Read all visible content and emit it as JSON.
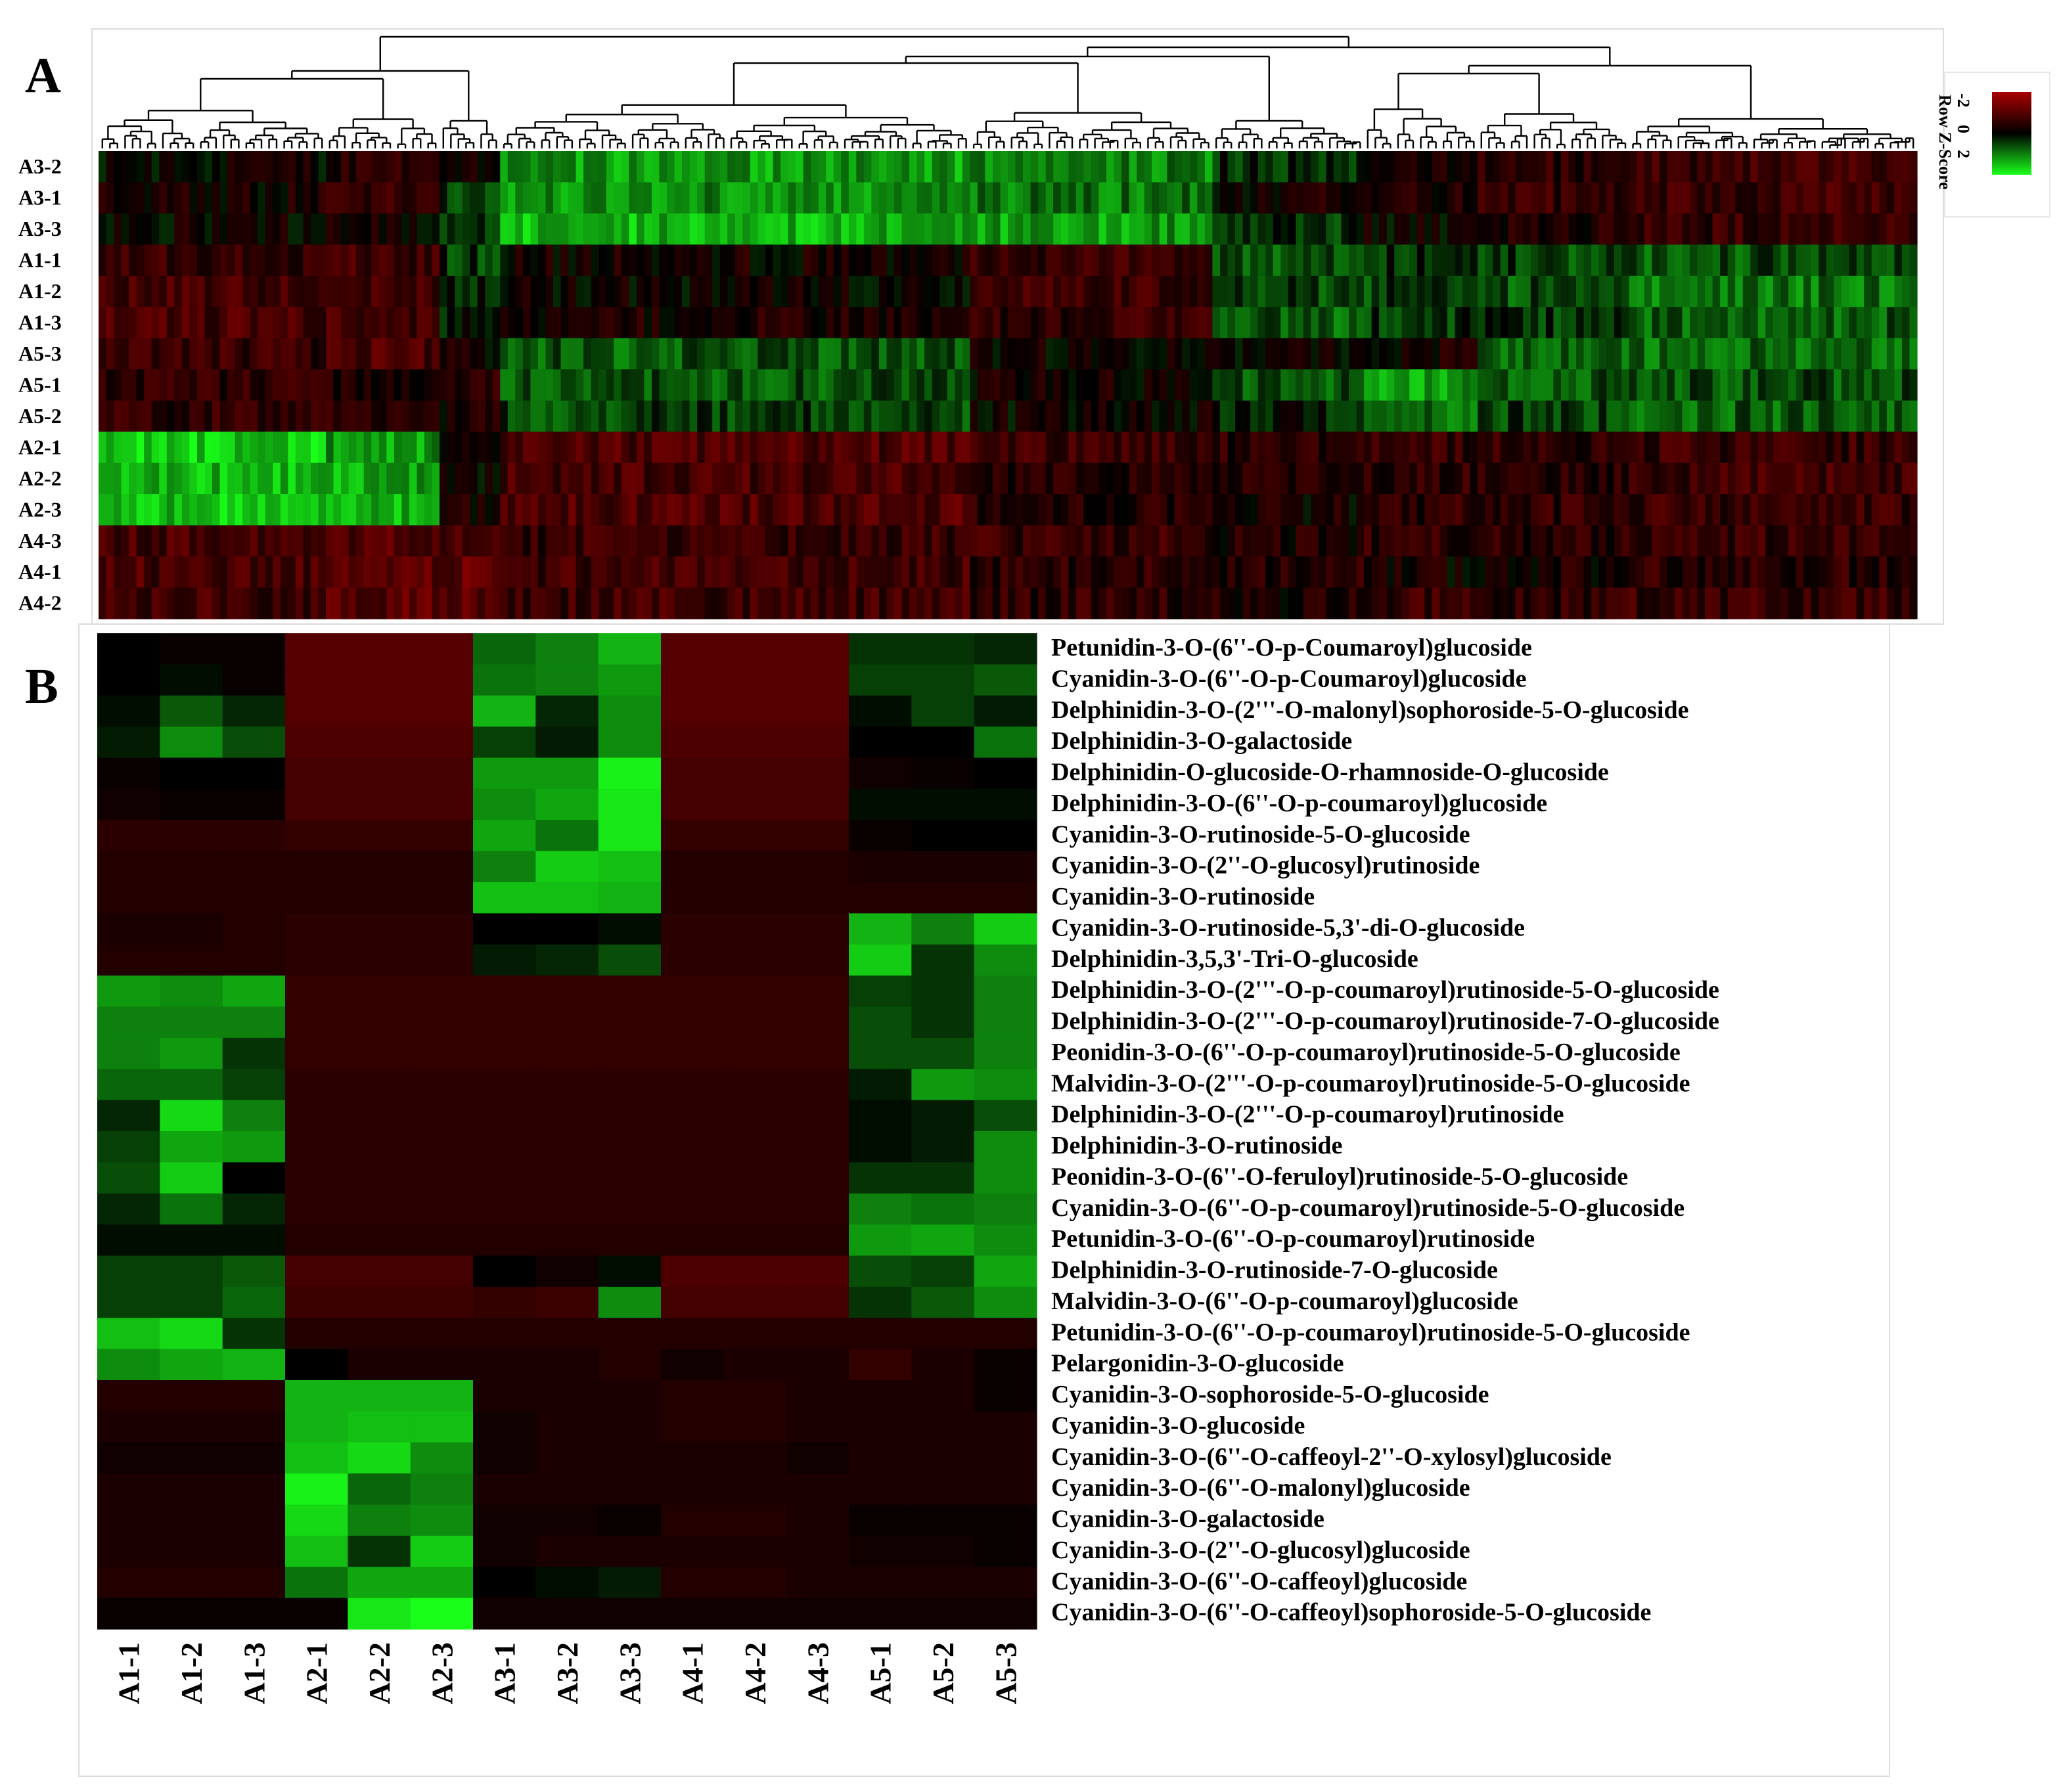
{
  "panel_labels": {
    "a": "A",
    "b": "B"
  },
  "colors": {
    "low": "#19ff19",
    "mid": "#000000",
    "high": "#aa0000",
    "dendrogram": "#000000",
    "frame": "#dcdcdc"
  },
  "color_key": {
    "title": "Row Z-Score",
    "ticks": [
      "-2",
      "0",
      "2"
    ]
  },
  "chart_data": [
    {
      "type": "heatmap",
      "panel": "A",
      "color_scale": {
        "label": "Row Z-Score",
        "min": -2,
        "max": 2,
        "low_color": "#19ff19",
        "mid_color": "#000000",
        "high_color": "#aa0000"
      },
      "rows": [
        "A3-2",
        "A3-1",
        "A3-3",
        "A1-1",
        "A1-2",
        "A1-3",
        "A5-3",
        "A5-1",
        "A5-2",
        "A2-1",
        "A2-2",
        "A2-3",
        "A4-3",
        "A4-1",
        "A4-2"
      ],
      "column_count": 240,
      "column_blocks": [
        {
          "columns": 30,
          "z": [
            0.1,
            0.2,
            0.1,
            0.6,
            0.8,
            0.8,
            0.6,
            0.5,
            0.5,
            -1.6,
            -1.4,
            -1.5,
            0.8,
            0.8,
            0.7
          ]
        },
        {
          "columns": 15,
          "z": [
            0.4,
            0.5,
            0.2,
            0.7,
            0.7,
            0.8,
            0.8,
            0.4,
            0.6,
            -1.2,
            -1.3,
            -1.4,
            0.9,
            1.0,
            1.0
          ]
        },
        {
          "columns": 8,
          "z": [
            0.3,
            -0.4,
            -0.5,
            -0.4,
            -0.3,
            -0.2,
            0.2,
            0.4,
            0.3,
            -0.1,
            0.1,
            0.3,
            0.8,
            1.1,
            1.0
          ]
        },
        {
          "columns": 62,
          "z": [
            -1.2,
            -1.1,
            -1.4,
            0.2,
            0.1,
            0.3,
            -0.7,
            -0.6,
            -0.5,
            0.9,
            0.8,
            0.9,
            0.6,
            0.7,
            0.7
          ]
        },
        {
          "columns": 32,
          "z": [
            -1.0,
            -0.9,
            -1.2,
            0.6,
            0.7,
            0.6,
            0.1,
            0.2,
            0.1,
            0.7,
            0.4,
            0.4,
            0.6,
            0.5,
            0.5
          ]
        },
        {
          "columns": 20,
          "z": [
            -0.3,
            0.2,
            -0.4,
            -0.6,
            -0.5,
            -0.7,
            0.1,
            -0.6,
            -0.2,
            0.4,
            0.3,
            0.2,
            0.3,
            0.4,
            0.3
          ]
        },
        {
          "columns": 15,
          "z": [
            0.3,
            0.4,
            0.1,
            -0.3,
            -0.5,
            -0.4,
            0.2,
            -1.2,
            -0.8,
            0.6,
            0.5,
            0.5,
            0.5,
            0.2,
            0.6
          ]
        },
        {
          "columns": 20,
          "z": [
            0.5,
            0.6,
            0.3,
            -0.5,
            -0.6,
            -0.4,
            -0.7,
            -0.6,
            -0.5,
            0.5,
            0.4,
            0.5,
            0.4,
            0.3,
            0.5
          ]
        },
        {
          "columns": 38,
          "z": [
            0.7,
            0.7,
            0.6,
            -0.6,
            -0.9,
            -0.7,
            -0.8,
            -0.6,
            -0.7,
            0.6,
            0.7,
            0.6,
            0.6,
            0.5,
            0.6
          ]
        }
      ],
      "dendrogram": "column dendrogram above the heatmap"
    },
    {
      "type": "heatmap",
      "panel": "B",
      "color_scale": {
        "min": -2,
        "max": 2,
        "low_color": "#19ff19",
        "mid_color": "#000000",
        "high_color": "#aa0000"
      },
      "columns": [
        "A1-1",
        "A1-2",
        "A1-3",
        "A2-1",
        "A2-2",
        "A2-3",
        "A3-1",
        "A3-2",
        "A3-3",
        "A4-1",
        "A4-2",
        "A4-3",
        "A5-1",
        "A5-2",
        "A5-3"
      ],
      "rows": [
        "Petunidin-3-O-(6''-O-p-Coumaroyl)glucoside",
        "Cyanidin-3-O-(6''-O-p-Coumaroyl)glucoside",
        "Delphinidin-3-O-(2'''-O-malonyl)sophoroside-5-O-glucoside",
        "Delphinidin-3-O-galactoside",
        "Delphinidin-O-glucoside-O-rhamnoside-O-glucoside",
        "Delphinidin-3-O-(6''-O-p-coumaroyl)glucoside",
        "Cyanidin-3-O-rutinoside-5-O-glucoside",
        "Cyanidin-3-O-(2''-O-glucosyl)rutinoside",
        "Cyanidin-3-O-rutinoside",
        "Cyanidin-3-O-rutinoside-5,3'-di-O-glucoside",
        "Delphinidin-3,5,3'-Tri-O-glucoside",
        "Delphinidin-3-O-(2'''-O-p-coumaroyl)rutinoside-5-O-glucoside",
        "Delphinidin-3-O-(2'''-O-p-coumaroyl)rutinoside-7-O-glucoside",
        "Peonidin-3-O-(6''-O-p-coumaroyl)rutinoside-5-O-glucoside",
        "Malvidin-3-O-(2'''-O-p-coumaroyl)rutinoside-5-O-glucoside",
        "Delphinidin-3-O-(2'''-O-p-coumaroyl)rutinoside",
        "Delphinidin-3-O-rutinoside",
        "Peonidin-3-O-(6''-O-feruloyl)rutinoside-5-O-glucoside",
        "Cyanidin-3-O-(6''-O-p-coumaroyl)rutinoside-5-O-glucoside",
        "Petunidin-3-O-(6''-O-p-coumaroyl)rutinoside",
        "Delphinidin-3-O-rutinoside-7-O-glucoside",
        "Malvidin-3-O-(6''-O-p-coumaroyl)glucoside",
        "Petunidin-3-O-(6''-O-p-coumaroyl)rutinoside-5-O-glucoside",
        "Pelargonidin-3-O-glucoside",
        "Cyanidin-3-O-sophoroside-5-O-glucoside",
        "Cyanidin-3-O-glucoside",
        "Cyanidin-3-O-(6''-O-caffeoyl-2''-O-xylosyl)glucoside",
        "Cyanidin-3-O-(6''-O-malonyl)glucoside",
        "Cyanidin-3-O-galactoside",
        "Cyanidin-3-O-(2''-O-glucosyl)glucoside",
        "Cyanidin-3-O-(6''-O-caffeoyl)glucoside",
        "Cyanidin-3-O-(6''-O-caffeoyl)sophoroside-5-O-glucoside"
      ],
      "values": [
        [
          0.0,
          0.1,
          0.1,
          1.0,
          1.0,
          1.0,
          -0.8,
          -1.0,
          -1.4,
          1.0,
          1.0,
          1.0,
          -0.4,
          -0.4,
          -0.3
        ],
        [
          0.0,
          -0.1,
          0.1,
          1.0,
          1.0,
          1.0,
          -0.9,
          -1.0,
          -1.2,
          1.0,
          1.0,
          1.0,
          -0.5,
          -0.5,
          -0.7
        ],
        [
          -0.1,
          -0.7,
          -0.3,
          1.0,
          1.0,
          1.0,
          -1.4,
          -0.3,
          -1.1,
          1.0,
          1.0,
          1.0,
          -0.1,
          -0.5,
          -0.2
        ],
        [
          -0.2,
          -1.1,
          -0.6,
          0.9,
          0.9,
          0.9,
          -0.5,
          -0.2,
          -1.1,
          0.9,
          0.9,
          0.9,
          0.0,
          0.0,
          -0.9
        ],
        [
          0.1,
          0.0,
          0.0,
          0.8,
          0.8,
          0.8,
          -1.2,
          -1.2,
          -1.9,
          0.8,
          0.8,
          0.8,
          0.2,
          0.1,
          0.0
        ],
        [
          0.2,
          0.1,
          0.1,
          0.8,
          0.8,
          0.8,
          -1.1,
          -1.3,
          -1.8,
          0.8,
          0.8,
          0.8,
          -0.1,
          -0.1,
          -0.1
        ],
        [
          0.5,
          0.5,
          0.5,
          0.6,
          0.6,
          0.6,
          -1.3,
          -0.9,
          -1.8,
          0.6,
          0.6,
          0.6,
          0.1,
          0.0,
          0.0
        ],
        [
          0.4,
          0.4,
          0.4,
          0.4,
          0.4,
          0.4,
          -1.0,
          -1.6,
          -1.5,
          0.4,
          0.4,
          0.4,
          0.3,
          0.3,
          0.3
        ],
        [
          0.4,
          0.4,
          0.4,
          0.4,
          0.4,
          0.4,
          -1.5,
          -1.5,
          -1.4,
          0.4,
          0.4,
          0.4,
          0.4,
          0.4,
          0.4
        ],
        [
          0.3,
          0.3,
          0.4,
          0.5,
          0.5,
          0.5,
          0.0,
          0.0,
          -0.1,
          0.5,
          0.5,
          0.5,
          -1.4,
          -1.0,
          -1.6
        ],
        [
          0.4,
          0.4,
          0.4,
          0.5,
          0.5,
          0.5,
          -0.2,
          -0.3,
          -0.6,
          0.5,
          0.5,
          0.5,
          -1.6,
          -0.4,
          -1.1
        ],
        [
          -1.2,
          -1.1,
          -1.3,
          0.6,
          0.6,
          0.6,
          0.6,
          0.6,
          0.6,
          0.6,
          0.6,
          0.6,
          -0.5,
          -0.4,
          -1.0
        ],
        [
          -1.0,
          -1.0,
          -1.0,
          0.6,
          0.6,
          0.6,
          0.6,
          0.6,
          0.6,
          0.6,
          0.6,
          0.6,
          -0.6,
          -0.4,
          -1.0
        ],
        [
          -1.0,
          -1.2,
          -0.4,
          0.6,
          0.6,
          0.6,
          0.6,
          0.6,
          0.6,
          0.6,
          0.6,
          0.6,
          -0.6,
          -0.6,
          -1.0
        ],
        [
          -0.8,
          -0.8,
          -0.5,
          0.5,
          0.5,
          0.5,
          0.5,
          0.5,
          0.5,
          0.5,
          0.5,
          0.5,
          -0.2,
          -1.2,
          -1.1
        ],
        [
          -0.3,
          -1.7,
          -1.0,
          0.5,
          0.5,
          0.5,
          0.5,
          0.5,
          0.5,
          0.5,
          0.5,
          0.5,
          -0.1,
          -0.2,
          -0.6
        ],
        [
          -0.5,
          -1.3,
          -1.2,
          0.5,
          0.5,
          0.5,
          0.5,
          0.5,
          0.5,
          0.5,
          0.5,
          0.5,
          -0.1,
          -0.2,
          -1.1
        ],
        [
          -0.6,
          -1.6,
          0.0,
          0.5,
          0.5,
          0.5,
          0.5,
          0.5,
          0.5,
          0.5,
          0.5,
          0.5,
          -0.4,
          -0.4,
          -1.1
        ],
        [
          -0.3,
          -0.9,
          -0.3,
          0.5,
          0.5,
          0.5,
          0.5,
          0.5,
          0.5,
          0.5,
          0.5,
          0.5,
          -1.0,
          -0.9,
          -1.0
        ],
        [
          -0.1,
          -0.1,
          -0.1,
          0.4,
          0.4,
          0.4,
          0.4,
          0.4,
          0.4,
          0.4,
          0.4,
          0.4,
          -1.2,
          -1.3,
          -1.1
        ],
        [
          -0.5,
          -0.5,
          -0.7,
          0.8,
          0.8,
          0.8,
          0.0,
          0.2,
          -0.1,
          0.9,
          0.9,
          0.9,
          -0.6,
          -0.5,
          -1.3
        ],
        [
          -0.5,
          -0.5,
          -0.8,
          0.7,
          0.7,
          0.7,
          0.6,
          0.7,
          -1.1,
          0.8,
          0.8,
          0.8,
          -0.4,
          -0.7,
          -1.1
        ],
        [
          -1.5,
          -1.7,
          -0.4,
          0.4,
          0.4,
          0.4,
          0.4,
          0.4,
          0.4,
          0.4,
          0.4,
          0.4,
          0.4,
          0.4,
          0.4
        ],
        [
          -1.1,
          -1.3,
          -1.4,
          0.0,
          0.3,
          0.3,
          0.3,
          0.3,
          0.4,
          0.2,
          0.3,
          0.3,
          0.6,
          0.3,
          0.1
        ],
        [
          0.4,
          0.4,
          0.4,
          -1.4,
          -1.4,
          -1.4,
          0.3,
          0.3,
          0.3,
          0.4,
          0.4,
          0.3,
          0.3,
          0.3,
          0.1
        ],
        [
          0.3,
          0.3,
          0.3,
          -1.4,
          -1.5,
          -1.5,
          0.2,
          0.3,
          0.3,
          0.4,
          0.4,
          0.3,
          0.3,
          0.3,
          0.3
        ],
        [
          0.2,
          0.2,
          0.2,
          -1.5,
          -1.7,
          -1.1,
          0.2,
          0.3,
          0.3,
          0.3,
          0.3,
          0.2,
          0.3,
          0.3,
          0.3
        ],
        [
          0.3,
          0.3,
          0.3,
          -1.9,
          -0.8,
          -1.0,
          0.3,
          0.3,
          0.3,
          0.3,
          0.3,
          0.3,
          0.3,
          0.3,
          0.3
        ],
        [
          0.3,
          0.3,
          0.3,
          -1.7,
          -1.0,
          -1.1,
          0.2,
          0.2,
          0.1,
          0.4,
          0.4,
          0.3,
          0.1,
          0.1,
          0.1
        ],
        [
          0.3,
          0.3,
          0.3,
          -1.5,
          -0.4,
          -1.6,
          0.2,
          0.3,
          0.3,
          0.3,
          0.3,
          0.3,
          0.2,
          0.2,
          0.1
        ],
        [
          0.4,
          0.4,
          0.4,
          -0.9,
          -1.3,
          -1.3,
          0.0,
          -0.1,
          -0.2,
          0.4,
          0.4,
          0.3,
          0.3,
          0.3,
          0.3
        ],
        [
          0.1,
          0.1,
          0.1,
          0.1,
          -1.8,
          -2.0,
          0.2,
          0.2,
          0.2,
          0.2,
          0.2,
          0.2,
          0.2,
          0.2,
          0.2
        ]
      ]
    }
  ]
}
